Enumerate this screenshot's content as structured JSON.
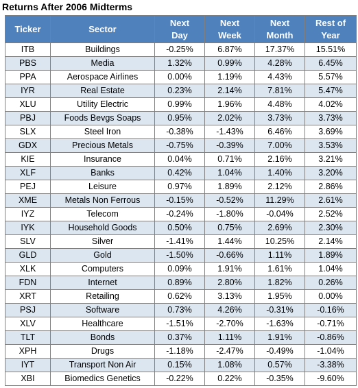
{
  "title": "Returns After 2006 Midterms",
  "chart_data": {
    "type": "table",
    "title": "Returns After 2006 Midterms",
    "columns": [
      {
        "key": "ticker",
        "lines": [
          "Ticker"
        ]
      },
      {
        "key": "sector",
        "lines": [
          "Sector"
        ]
      },
      {
        "key": "next_day",
        "lines": [
          "Next",
          "Day"
        ]
      },
      {
        "key": "next_week",
        "lines": [
          "Next",
          "Week"
        ]
      },
      {
        "key": "next_month",
        "lines": [
          "Next",
          "Month"
        ]
      },
      {
        "key": "rest_of_year",
        "lines": [
          "Rest of",
          "Year"
        ]
      }
    ],
    "rows": [
      [
        "ITB",
        "Buildings",
        "-0.25%",
        "6.87%",
        "17.37%",
        "15.51%"
      ],
      [
        "PBS",
        "Media",
        "1.32%",
        "0.99%",
        "4.28%",
        "6.45%"
      ],
      [
        "PPA",
        "Aerospace Airlines",
        "0.00%",
        "1.19%",
        "4.43%",
        "5.57%"
      ],
      [
        "IYR",
        "Real Estate",
        "0.23%",
        "2.14%",
        "7.81%",
        "5.47%"
      ],
      [
        "XLU",
        "Utility Electric",
        "0.99%",
        "1.96%",
        "4.48%",
        "4.02%"
      ],
      [
        "PBJ",
        "Foods Bevgs Soaps",
        "0.95%",
        "2.02%",
        "3.73%",
        "3.73%"
      ],
      [
        "SLX",
        "Steel Iron",
        "-0.38%",
        "-1.43%",
        "6.46%",
        "3.69%"
      ],
      [
        "GDX",
        "Precious Metals",
        "-0.75%",
        "-0.39%",
        "7.00%",
        "3.53%"
      ],
      [
        "KIE",
        "Insurance",
        "0.04%",
        "0.71%",
        "2.16%",
        "3.21%"
      ],
      [
        "XLF",
        "Banks",
        "0.42%",
        "1.04%",
        "1.40%",
        "3.20%"
      ],
      [
        "PEJ",
        "Leisure",
        "0.97%",
        "1.89%",
        "2.12%",
        "2.86%"
      ],
      [
        "XME",
        "Metals Non Ferrous",
        "-0.15%",
        "-0.52%",
        "11.29%",
        "2.61%"
      ],
      [
        "IYZ",
        "Telecom",
        "-0.24%",
        "-1.80%",
        "-0.04%",
        "2.52%"
      ],
      [
        "IYK",
        "Household Goods",
        "0.50%",
        "0.75%",
        "2.69%",
        "2.30%"
      ],
      [
        "SLV",
        "Silver",
        "-1.41%",
        "1.44%",
        "10.25%",
        "2.14%"
      ],
      [
        "GLD",
        "Gold",
        "-1.50%",
        "-0.66%",
        "1.11%",
        "1.89%"
      ],
      [
        "XLK",
        "Computers",
        "0.09%",
        "1.91%",
        "1.61%",
        "1.04%"
      ],
      [
        "FDN",
        "Internet",
        "0.89%",
        "2.80%",
        "1.82%",
        "0.26%"
      ],
      [
        "XRT",
        "Retailing",
        "0.62%",
        "3.13%",
        "1.95%",
        "0.00%"
      ],
      [
        "PSJ",
        "Software",
        "0.73%",
        "4.26%",
        "-0.31%",
        "-0.16%"
      ],
      [
        "XLV",
        "Healthcare",
        "-1.51%",
        "-2.70%",
        "-1.63%",
        "-0.71%"
      ],
      [
        "TLT",
        "Bonds",
        "0.37%",
        "1.11%",
        "1.91%",
        "-0.86%"
      ],
      [
        "XPH",
        "Drugs",
        "-1.18%",
        "-2.47%",
        "-0.49%",
        "-1.04%"
      ],
      [
        "IYT",
        "Transport Non Air",
        "0.15%",
        "1.08%",
        "0.57%",
        "-3.38%"
      ],
      [
        "XBI",
        "Biomedics Genetics",
        "-0.22%",
        "0.22%",
        "-0.35%",
        "-9.60%"
      ]
    ]
  },
  "colors": {
    "header_bg": "#4f81bd",
    "header_text": "#ffffff",
    "band_even": "#dce6f1",
    "band_odd": "#ffffff",
    "border": "#7f7f7f"
  }
}
